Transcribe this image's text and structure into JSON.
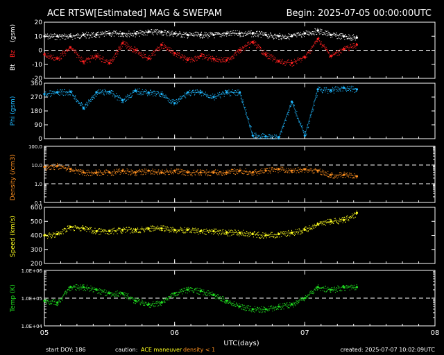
{
  "header": {
    "title": "ACE RTSW[Estimated] MAG & SWEPAM",
    "begin": "Begin: 2025-07-05 00:00:00UTC"
  },
  "footer": {
    "start_doy": "start DOY: 186",
    "caution_label": "caution:",
    "caution_maneuver": "ACE maneuver",
    "caution_density": "density < 1",
    "created": "created: 2025-07-07 10:02:09UTC"
  },
  "colors": {
    "bt": "#ffffff",
    "bz": "#ff2020",
    "phi": "#20b8ff",
    "density": "#ff9020",
    "speed": "#ffff20",
    "temp": "#20e020",
    "maneuver": "#ffff20",
    "density_low": "#ff9020"
  },
  "chart_data": [
    {
      "type": "scatter",
      "panel": "mag",
      "ylabel_parts": [
        "Bt",
        "Bz",
        "(gsm)"
      ],
      "ylim": [
        -20,
        20
      ],
      "yticks": [
        -20,
        -10,
        0,
        10,
        20
      ],
      "tick_labels": [
        "-20",
        "-10",
        "0",
        "10",
        "20"
      ],
      "reference_lines": [
        0
      ],
      "series": [
        {
          "name": "Bt",
          "x": [
            0.0,
            0.1,
            0.2,
            0.3,
            0.4,
            0.5,
            0.6,
            0.7,
            0.8,
            0.9,
            1.0,
            1.1,
            1.2,
            1.3,
            1.4,
            1.5,
            1.6,
            1.7,
            1.8,
            1.9,
            2.0,
            2.1,
            2.2,
            2.3,
            2.4
          ],
          "y": [
            10,
            10,
            10,
            11,
            11,
            12,
            12,
            12,
            13,
            13,
            12,
            11,
            11,
            11,
            12,
            12,
            12,
            11,
            10,
            10,
            12,
            14,
            11,
            10,
            9
          ]
        },
        {
          "name": "Bz",
          "x": [
            0.0,
            0.1,
            0.2,
            0.3,
            0.4,
            0.5,
            0.6,
            0.7,
            0.8,
            0.9,
            1.0,
            1.1,
            1.2,
            1.3,
            1.4,
            1.5,
            1.6,
            1.7,
            1.8,
            1.9,
            2.0,
            2.1,
            2.2,
            2.3,
            2.4
          ],
          "y": [
            -3,
            -6,
            2,
            -8,
            -4,
            -9,
            5,
            0,
            -6,
            4,
            -2,
            -7,
            -4,
            -6,
            -7,
            0,
            6,
            -3,
            -8,
            -9,
            -5,
            8,
            -4,
            1,
            4
          ]
        }
      ]
    },
    {
      "type": "scatter",
      "panel": "phi",
      "ylabel": "Phi (gsm)",
      "ylim": [
        0,
        360
      ],
      "yticks": [
        0,
        90,
        180,
        270,
        360
      ],
      "tick_labels": [
        "0",
        "90",
        "180",
        "270",
        "360"
      ],
      "series": [
        {
          "name": "Phi",
          "x": [
            0.0,
            0.1,
            0.2,
            0.3,
            0.4,
            0.5,
            0.6,
            0.7,
            0.8,
            0.9,
            1.0,
            1.1,
            1.2,
            1.3,
            1.4,
            1.5,
            1.6,
            1.7,
            1.8,
            1.9,
            2.0,
            2.1,
            2.2,
            2.3,
            2.4
          ],
          "y": [
            290,
            300,
            305,
            200,
            300,
            305,
            250,
            310,
            300,
            290,
            230,
            300,
            300,
            270,
            300,
            300,
            20,
            15,
            10,
            240,
            20,
            320,
            315,
            330,
            320
          ]
        }
      ]
    },
    {
      "type": "scatter",
      "panel": "density",
      "ylabel": "Density (/cm3)",
      "scale": "log",
      "ylim": [
        0.1,
        100
      ],
      "yticks": [
        0.1,
        1,
        10,
        100
      ],
      "tick_labels": [
        "0.1",
        "1.0",
        "10.0",
        "100.0"
      ],
      "reference_lines": [
        1,
        10
      ],
      "series": [
        {
          "name": "Density",
          "x": [
            0.0,
            0.1,
            0.2,
            0.3,
            0.4,
            0.5,
            0.6,
            0.7,
            0.8,
            0.9,
            1.0,
            1.1,
            1.2,
            1.3,
            1.4,
            1.5,
            1.6,
            1.7,
            1.8,
            1.9,
            2.0,
            2.1,
            2.2,
            2.3,
            2.4
          ],
          "y": [
            8,
            9,
            6,
            4,
            4,
            4,
            5,
            4,
            5,
            4,
            5,
            4,
            4,
            4,
            4,
            5,
            4,
            5,
            6,
            5,
            6,
            5,
            3,
            3,
            2.5
          ]
        }
      ]
    },
    {
      "type": "scatter",
      "panel": "speed",
      "ylabel": "Speed (km/s)",
      "ylim": [
        200,
        600
      ],
      "yticks": [
        200,
        300,
        400,
        500,
        600
      ],
      "tick_labels": [
        "200",
        "300",
        "400",
        "500",
        "600"
      ],
      "series": [
        {
          "name": "Speed",
          "x": [
            0.0,
            0.1,
            0.2,
            0.3,
            0.4,
            0.5,
            0.6,
            0.7,
            0.8,
            0.9,
            1.0,
            1.1,
            1.2,
            1.3,
            1.4,
            1.5,
            1.6,
            1.7,
            1.8,
            1.9,
            2.0,
            2.1,
            2.2,
            2.3,
            2.4
          ],
          "y": [
            400,
            410,
            460,
            450,
            430,
            430,
            440,
            440,
            450,
            450,
            440,
            440,
            430,
            430,
            420,
            420,
            410,
            400,
            410,
            420,
            440,
            480,
            500,
            510,
            560
          ]
        }
      ]
    },
    {
      "type": "scatter",
      "panel": "temp",
      "ylabel": "Temp (K)",
      "scale": "log",
      "ylim": [
        10000,
        1000000
      ],
      "yticks": [
        10000,
        100000,
        1000000
      ],
      "tick_labels": [
        "1.0E+04",
        "1.0E+05",
        "1.0E+06"
      ],
      "reference_lines": [
        100000
      ],
      "series": [
        {
          "name": "Temp",
          "x": [
            0.0,
            0.1,
            0.2,
            0.3,
            0.4,
            0.5,
            0.6,
            0.7,
            0.8,
            0.9,
            1.0,
            1.1,
            1.2,
            1.3,
            1.4,
            1.5,
            1.6,
            1.7,
            1.8,
            1.9,
            2.0,
            2.1,
            2.2,
            2.3,
            2.4
          ],
          "y": [
            80000,
            70000,
            250000,
            250000,
            200000,
            150000,
            150000,
            80000,
            60000,
            70000,
            150000,
            200000,
            180000,
            130000,
            80000,
            50000,
            40000,
            40000,
            50000,
            60000,
            100000,
            250000,
            200000,
            250000,
            250000
          ]
        }
      ]
    }
  ],
  "x_axis": {
    "label": "UTC(days)",
    "xlim": [
      0,
      3
    ],
    "ticks": [
      0,
      1,
      2,
      3
    ],
    "tick_labels": [
      "05",
      "06",
      "07",
      "08"
    ]
  }
}
